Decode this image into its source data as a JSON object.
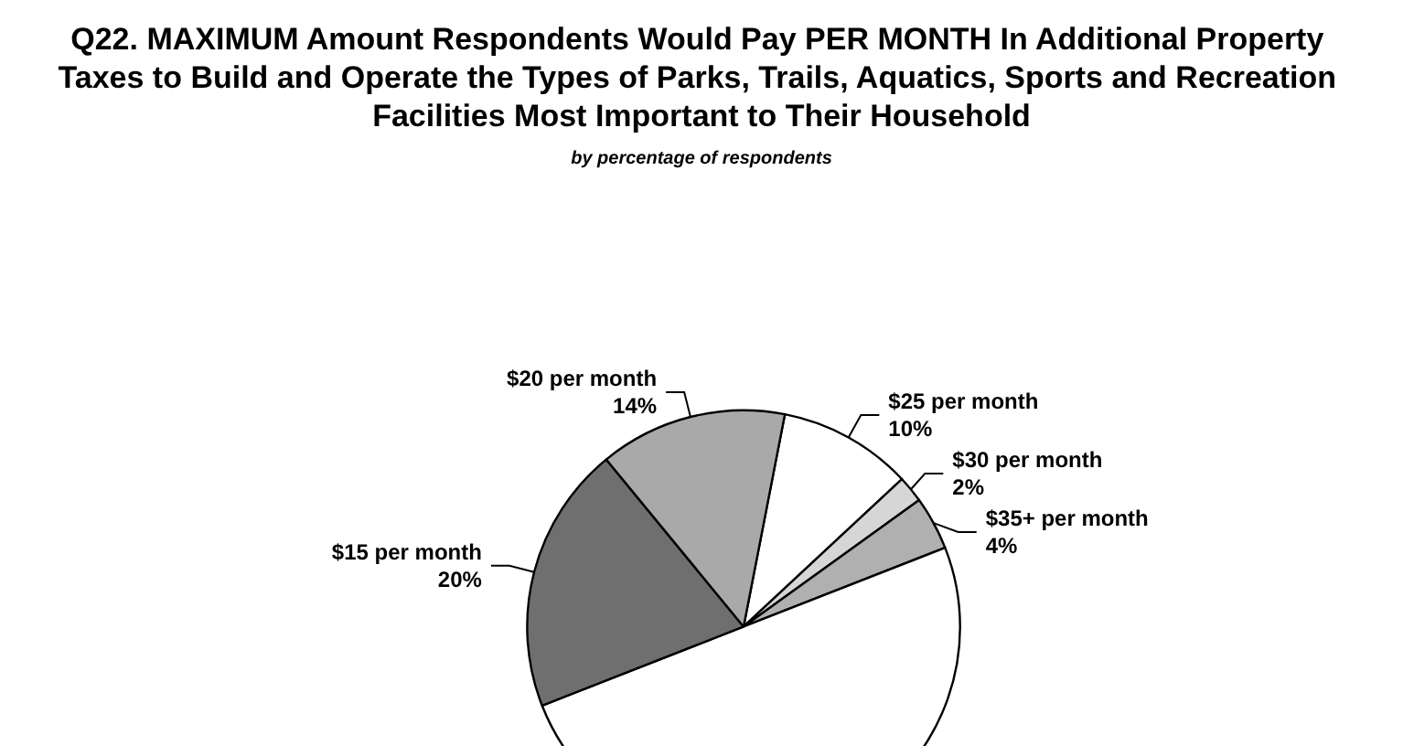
{
  "chart_data": {
    "type": "pie",
    "title": "Q22. MAXIMUM Amount Respondents Would Pay PER MONTH In Additional Property Taxes to Build and Operate the Types of Parks, Trails, Aquatics, Sports and Recreation Facilities Most Important to Their Household",
    "subtitle": "by percentage of respondents",
    "categories": [
      "$25 per month",
      "$30 per month",
      "$35+ per month",
      null,
      "$15 per month",
      "$20 per month"
    ],
    "values": [
      10,
      2,
      4,
      50,
      20,
      14
    ],
    "value_labels": [
      "10%",
      "2%",
      "4%",
      null,
      "20%",
      "14%"
    ],
    "colors": [
      "#ffffff",
      "#d6d6d6",
      "#b0b0b0",
      "#ffffff",
      "#6f6f6f",
      "#a9a9a9"
    ],
    "legend": false
  }
}
